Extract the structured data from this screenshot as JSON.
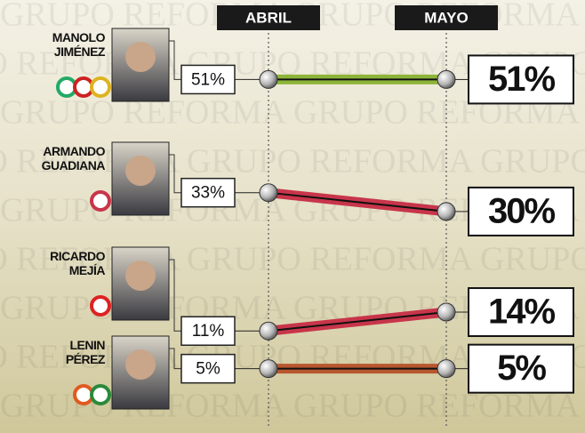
{
  "chart_data": {
    "type": "slope",
    "watermark": "GRUPO REFORMA",
    "categories": [
      "ABRIL",
      "MAYO"
    ],
    "series": [
      {
        "name": "MANOLO JIMÉNEZ",
        "color": "#8db43a",
        "values": [
          51,
          51
        ],
        "value_labels": [
          "51%",
          "51%"
        ]
      },
      {
        "name": "ARMANDO GUADIANA",
        "color": "#c8354a",
        "values": [
          33,
          30
        ],
        "value_labels": [
          "33%",
          "30%"
        ]
      },
      {
        "name": "RICARDO MEJÍA",
        "color": "#c8354a",
        "values": [
          11,
          14
        ],
        "value_labels": [
          "11%",
          "14%"
        ]
      },
      {
        "name": "LENIN PÉREZ",
        "color": "#b8572e",
        "values": [
          5,
          5
        ],
        "value_labels": [
          "5%",
          "5%"
        ]
      }
    ]
  }
}
